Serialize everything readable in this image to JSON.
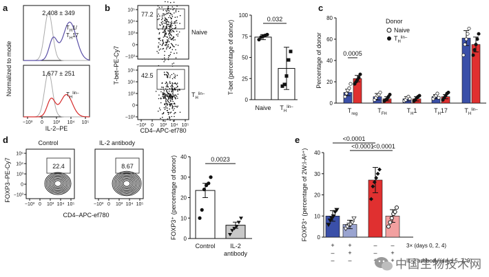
{
  "panels": {
    "a": {
      "label": "a",
      "ylabel": "Normalized to mode",
      "xlabel": "IL-2–PE",
      "top": {
        "value_text": "2,408 ± 349",
        "pop_line1": "T",
        "pop_sub1": "H",
        "pop_rest1": "1/",
        "pop_line2": "T",
        "pop_sub2": "H",
        "pop_rest2": "17",
        "color": "#5a4fa6"
      },
      "bottom": {
        "value_text": "1,677 ± 251",
        "pop": "T",
        "pop_sub": "H",
        "pop_sup": "lin–",
        "color": "#d62a2a"
      },
      "x_ticks": [
        "−10³",
        "0",
        "10³",
        "10⁴",
        "10⁵"
      ]
    },
    "b": {
      "label": "b",
      "ylabel": "T-bet–PE-Cy7",
      "xlabel": "CD4–APC-ef780",
      "gate_top": "77.2",
      "gate_bottom": "42.5",
      "pop_top": "Naive",
      "pop_bottom_main": "T",
      "pop_bottom_sub": "H",
      "pop_bottom_sup": "lin–",
      "y_ticks": [
        "10⁵",
        "10⁴",
        "10³",
        "0",
        "−10³"
      ],
      "x_ticks": [
        "−10³",
        "0",
        "10³",
        "10⁴",
        "10⁵"
      ]
    },
    "d": {
      "label": "d",
      "ylabel": "FOXP3–PE-Cy7",
      "xlabel": "CD4–APC-ef780",
      "left_title": "Control",
      "right_title": "IL-2 antibody",
      "gate_left": "22.4",
      "gate_right": "8.67",
      "y_ticks": [
        "10⁵",
        "10⁴",
        "10³",
        "0",
        "−10³"
      ],
      "x_ticks": [
        "−10³",
        "0",
        "10³",
        "10⁴",
        "10⁵"
      ]
    },
    "c": {
      "label": "c",
      "legend_title": "Donor",
      "legend_naive": "Naive",
      "legend_th": "T",
      "legend_th_sub": "H",
      "legend_th_sup": "lin–",
      "pvalue": "0.0005"
    },
    "e": {
      "label": "e",
      "pvalues": [
        "<0.0001",
        "<0.0001",
        "<0.0001"
      ],
      "row1_label": "3× (days 0, 2, 4)",
      "row2_label": "IL-2 antibody (days 5, 7, 9)",
      "row1_signs": [
        "+",
        "+",
        "–",
        "–"
      ],
      "row2_signs": [
        "–",
        "+",
        "–",
        "+"
      ],
      "row0_signs": [
        "–",
        "–",
        "+",
        "+"
      ]
    }
  },
  "chart_data": [
    {
      "type": "bar",
      "panel": "b",
      "categories": [
        "Naive",
        "T_H lin–"
      ],
      "category_labels": {
        "naive": "Naive",
        "th_main": "T",
        "th_sub": "H",
        "th_sup": "lin–"
      },
      "values": [
        74,
        37
      ],
      "errors": [
        3,
        25
      ],
      "points": [
        [
          71,
          74,
          75,
          76,
          77
        ],
        [
          16,
          18,
          28,
          47,
          57
        ]
      ],
      "ylabel": "T-bet (percentage of donor)",
      "ylim": [
        0,
        100
      ],
      "yticks": [
        0,
        25,
        50,
        75,
        100
      ],
      "pvalue": "0.032"
    },
    {
      "type": "bar",
      "panel": "c",
      "categories": [
        "T_reg",
        "T_FH",
        "T_H1",
        "T_H17",
        "T_H lin–"
      ],
      "category_labels": [
        {
          "main": "T",
          "sub": "reg"
        },
        {
          "main": "T",
          "sub": "FH"
        },
        {
          "main": "T",
          "sub": "H",
          "rest": "1"
        },
        {
          "main": "T",
          "sub": "H",
          "rest": "17"
        },
        {
          "main": "T",
          "sub": "H",
          "sup": "lin–"
        }
      ],
      "ylabel": "Percentage of donor",
      "ylim": [
        0,
        80
      ],
      "yticks": [
        0,
        20,
        40,
        60,
        80
      ],
      "series": [
        {
          "name": "Naive",
          "color": "#3a4fa8",
          "values": [
            10,
            6,
            4,
            6,
            61
          ],
          "errors": [
            3,
            3,
            2,
            2,
            7
          ],
          "points": [
            [
              6,
              9,
              12,
              14,
              18
            ],
            [
              3,
              5,
              7,
              8,
              10
            ],
            [
              2,
              3,
              5,
              6,
              4
            ],
            [
              4,
              6,
              7,
              9,
              5
            ],
            [
              45,
              55,
              60,
              65,
              70
            ]
          ]
        },
        {
          "name": "T_H lin–",
          "color": "#e03030",
          "values": [
            23,
            4,
            4,
            6,
            55
          ],
          "errors": [
            3,
            2,
            2,
            2,
            7
          ],
          "points": [
            [
              18,
              20,
              22,
              24,
              27
            ],
            [
              2,
              3,
              4,
              6,
              8
            ],
            [
              2,
              3,
              5,
              6,
              7
            ],
            [
              3,
              5,
              7,
              9,
              10
            ],
            [
              45,
              50,
              55,
              60,
              65
            ]
          ]
        }
      ]
    },
    {
      "type": "bar",
      "panel": "d",
      "categories": [
        "Control",
        "IL-2 antibody"
      ],
      "category_labels": {
        "control": "Control",
        "il2_line1": "IL-2",
        "il2_line2": "antibody"
      },
      "values": [
        23.5,
        6.5
      ],
      "errors": [
        3.5,
        1.5
      ],
      "colors": [
        "#ffffff",
        "#c8c8c8"
      ],
      "points": [
        [
          10,
          14,
          24,
          26,
          27,
          30
        ],
        [
          2,
          4,
          5,
          6,
          8,
          10
        ]
      ],
      "ylabel": "FOXP3⁺ (percentage of donor)",
      "ylim": [
        0,
        40
      ],
      "yticks": [
        0,
        10,
        20,
        30,
        40
      ],
      "pvalue": "0.0023"
    },
    {
      "type": "bar",
      "panel": "e",
      "categories": [
        "g1",
        "g2",
        "g3",
        "g4"
      ],
      "values": [
        10,
        6,
        27,
        10
      ],
      "errors": [
        2.5,
        2,
        6,
        3
      ],
      "colors": [
        "#3a4fa8",
        "#9aa4d0",
        "#e03030",
        "#f2a0a0"
      ],
      "points": [
        [
          6,
          8,
          9,
          10,
          12,
          13
        ],
        [
          4,
          5,
          6,
          6,
          7,
          9
        ],
        [
          18,
          24,
          26,
          28,
          30,
          32
        ],
        [
          5,
          7,
          9,
          11,
          12,
          14
        ]
      ],
      "ylabel": "FOXP3⁺ (percentage of 2W:I-Aᵇ⁺)",
      "ylim": [
        0,
        40
      ],
      "yticks": [
        0,
        10,
        20,
        30,
        40
      ]
    }
  ],
  "watermark": {
    "text": "中国生物技术网",
    "icon": "wechat-icon"
  }
}
